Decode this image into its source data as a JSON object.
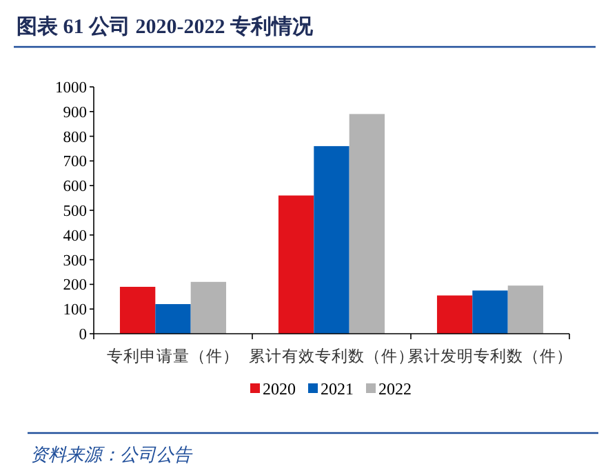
{
  "chart_data": {
    "type": "bar",
    "title": "图表 61   公司 2020-2022 专利情况",
    "categories": [
      "专利申请量（件）",
      "累计有效专利数（件）",
      "累计发明专利数（件）"
    ],
    "series": [
      {
        "name": "2020",
        "color": "#e3131b",
        "values": [
          190,
          560,
          155
        ]
      },
      {
        "name": "2021",
        "color": "#005eb8",
        "values": [
          120,
          760,
          175
        ]
      },
      {
        "name": "2022",
        "color": "#b3b3b3",
        "values": [
          210,
          890,
          195
        ]
      }
    ],
    "ylim": [
      0,
      1000
    ],
    "yticks": [
      0,
      100,
      200,
      300,
      400,
      500,
      600,
      700,
      800,
      900,
      1000
    ],
    "grid": false,
    "legend": "bottom",
    "annotations": [
      "资料来源：公司公告"
    ]
  }
}
